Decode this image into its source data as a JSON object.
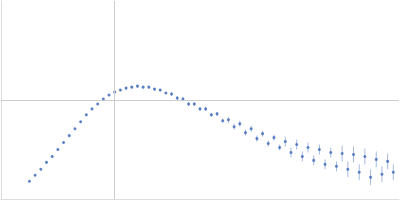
{
  "chart_data": {
    "type": "scatter",
    "color": "#3a66b8",
    "marker": "circle",
    "grid": true,
    "tick_labels": false,
    "xlim": [
      0,
      3.5
    ],
    "xticks": [
      1
    ],
    "ylim": [
      0,
      2
    ],
    "yticks": [
      1
    ],
    "x": [
      0.25,
      0.3,
      0.35,
      0.4,
      0.45,
      0.5,
      0.55,
      0.6,
      0.65,
      0.7,
      0.75,
      0.8,
      0.85,
      0.9,
      0.95,
      1.0,
      1.05,
      1.1,
      1.15,
      1.2,
      1.25,
      1.3,
      1.35,
      1.4,
      1.45,
      1.5,
      1.55,
      1.6,
      1.65,
      1.7,
      1.75,
      1.8,
      1.85,
      1.9,
      1.95,
      2.0,
      2.05,
      2.1,
      2.15,
      2.2,
      2.25,
      2.3,
      2.35,
      2.4,
      2.45,
      2.5,
      2.55,
      2.6,
      2.65,
      2.7,
      2.75,
      2.8,
      2.85,
      2.9,
      2.95,
      3.0,
      3.05,
      3.1,
      3.15,
      3.2,
      3.25,
      3.3,
      3.35,
      3.4,
      3.45
    ],
    "values": [
      0.18,
      0.24,
      0.3,
      0.37,
      0.43,
      0.5,
      0.57,
      0.64,
      0.71,
      0.78,
      0.85,
      0.91,
      0.96,
      1.01,
      1.05,
      1.08,
      1.1,
      1.12,
      1.13,
      1.14,
      1.13,
      1.13,
      1.11,
      1.1,
      1.07,
      1.06,
      1.02,
      1.01,
      0.96,
      0.96,
      0.91,
      0.91,
      0.85,
      0.86,
      0.79,
      0.8,
      0.73,
      0.76,
      0.67,
      0.71,
      0.61,
      0.66,
      0.56,
      0.62,
      0.52,
      0.58,
      0.47,
      0.55,
      0.43,
      0.52,
      0.39,
      0.5,
      0.35,
      0.47,
      0.33,
      0.46,
      0.3,
      0.45,
      0.27,
      0.43,
      0.22,
      0.4,
      0.25,
      0.38,
      0.27
    ],
    "errors": [
      0.005,
      0.005,
      0.005,
      0.005,
      0.005,
      0.005,
      0.005,
      0.005,
      0.005,
      0.005,
      0.005,
      0.005,
      0.005,
      0.005,
      0.005,
      0.01,
      0.01,
      0.01,
      0.01,
      0.01,
      0.01,
      0.01,
      0.01,
      0.01,
      0.01,
      0.02,
      0.02,
      0.02,
      0.02,
      0.02,
      0.02,
      0.02,
      0.02,
      0.02,
      0.02,
      0.03,
      0.03,
      0.03,
      0.03,
      0.03,
      0.03,
      0.03,
      0.03,
      0.03,
      0.03,
      0.05,
      0.05,
      0.05,
      0.05,
      0.05,
      0.05,
      0.05,
      0.05,
      0.05,
      0.05,
      0.08,
      0.08,
      0.08,
      0.08,
      0.08,
      0.08,
      0.08,
      0.08,
      0.08,
      0.08
    ]
  }
}
